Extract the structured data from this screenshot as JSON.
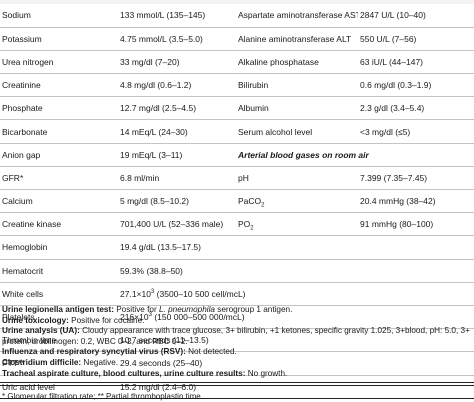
{
  "rows": [
    {
      "l1": "Sodium",
      "v1": "133 mmol/L (135–145)",
      "l2": "Aspartate aminotransferase AST",
      "v2": "2847 U/L (10–40)"
    },
    {
      "l1": "Potassium",
      "v1": "4.75 mmol/L (3.5–5.0)",
      "l2": "Alanine aminotransferase ALT",
      "v2": "550 U/L (7–56)"
    },
    {
      "l1": "Urea nitrogen",
      "v1": "33 mg/dl (7–20)",
      "l2": "Alkaline phosphatase",
      "v2": "63 iU/L (44–147)"
    },
    {
      "l1": "Creatinine",
      "v1": "4.8 mg/dl (0.6–1.2)",
      "l2": "Bilirubin",
      "v2": "0.6 mg/dl (0.3–1.9)"
    },
    {
      "l1": "Phosphate",
      "v1": "12.7 mg/dl (2.5–4.5)",
      "l2": "Albumin",
      "v2": "2.3 g/dl (3.4–5.4)"
    },
    {
      "l1": "Bicarbonate",
      "v1": "14 mEq/L (24–30)",
      "l2": "Serum alcohol level",
      "v2": "<3 mg/dl (≤5)"
    },
    {
      "l1": "Anion gap",
      "v1": "19 mEq/L (3–11)",
      "l2": "Arterial blood gases on room air",
      "v2": ""
    },
    {
      "l1": "GFR*",
      "v1": "6.8 ml/min",
      "l2": "pH",
      "v2": "7.399 (7.35–7.45)"
    },
    {
      "l1": "Calcium",
      "v1": "5 mg/dl (8.5–10.2)",
      "l2": "PaCO",
      "l2_sub": "2",
      "v2": "20.4 mmHg (38–42)"
    },
    {
      "l1": "Creatine kinase",
      "v1": "701,400 U/L (52–336 male)",
      "l2": "PO",
      "l2_sub": "2",
      "v2": "91 mmHg (80–100)"
    },
    {
      "l1": "Hemoglobin",
      "v1": "19.4 g/dL (13.5–17.5)",
      "l2": "",
      "v2": ""
    },
    {
      "l1": "Hematocrit",
      "v1": "59.3% (38.8–50)",
      "l2": "",
      "v2": ""
    },
    {
      "l1": "White cells",
      "v1": "27.1×10",
      "v1_sup": "3",
      "v1_tail": " (3500–10 500 cell/mcL)",
      "l2": "",
      "v2": ""
    },
    {
      "l1": "Platelets",
      "v1": "216×10",
      "v1_sup": "3",
      "v1_tail": " (150 000–500 000/mcL)",
      "l2": "",
      "v2": ""
    },
    {
      "l1": "Thrombin time",
      "v1": "10.7 seconds (11–13.5)",
      "l2": "",
      "v2": ""
    },
    {
      "l1": "PTT**",
      "v1": "29.4 seconds (25–40)",
      "l2": "",
      "v2": ""
    },
    {
      "l1": "Uric acid level",
      "v1": "15.2 mg/dl (2.4–6.0)",
      "l2": "",
      "v2": ""
    }
  ],
  "notes": {
    "legionella_label": "Urine legionella antigen test:",
    "legionella_text": " Positive for ",
    "legionella_species": "L. pneumophila",
    "legionella_tail": " serogroup 1 antigen.",
    "toxicology_label": "Urine toxicology:",
    "toxicology_text": " Positive for cocaine.",
    "ua_label": "Urine analysis (UA):",
    "ua_text_line1": " Cloudy appearance with trace glucose, 3+ bilirubin, +1 ketones, specific gravity 1.025, 3+blood, pH: 5.0, 3+",
    "ua_text_line2": "protein, urobilinogen: 0.2, WBC 0–2, and RBC 0–2.",
    "influenza_label": "Influenza and respiratory syncytial virus (RSV):",
    "influenza_text": " Not detected.",
    "cdiff_label": "Clostridium difficile:",
    "cdiff_text": " Negative.",
    "cultures_label": "Tracheal aspirate culture, blood cultures, urine culture results:",
    "cultures_text": " No growth."
  },
  "footnote": "* Glomerular filtration rate; ** Partial thromboplastin time."
}
